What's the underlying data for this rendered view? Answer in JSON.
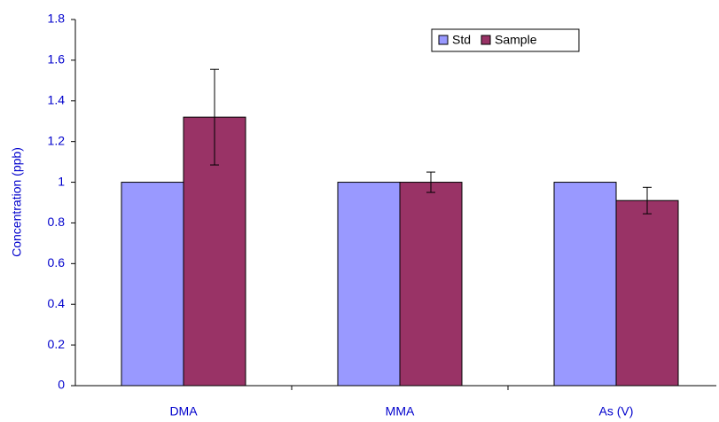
{
  "chart_data": {
    "type": "bar",
    "y_label": "Concentration (ppb)",
    "categories": [
      "DMA",
      "MMA",
      "As (V)"
    ],
    "series": [
      {
        "name": "Std",
        "color": "#9999ff",
        "values": [
          1,
          1,
          1
        ]
      },
      {
        "name": "Sample",
        "color": "#993366",
        "values": [
          1.32,
          1.0,
          0.91
        ],
        "errors": [
          0.235,
          0.05,
          0.065
        ]
      }
    ],
    "ylim": [
      0,
      1.8
    ],
    "yticks": [
      0,
      0.2,
      0.4,
      0.6,
      0.8,
      1,
      1.2,
      1.4,
      1.6,
      1.8
    ],
    "grid": false
  }
}
